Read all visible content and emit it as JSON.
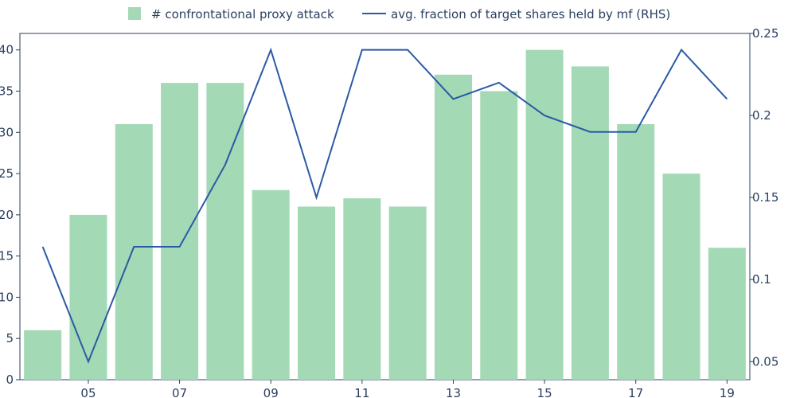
{
  "chart_data": {
    "type": "bar",
    "x": [
      "04",
      "05",
      "06",
      "07",
      "08",
      "09",
      "10",
      "11",
      "12",
      "13",
      "14",
      "15",
      "16",
      "17",
      "18",
      "19"
    ],
    "x_tick_labels": [
      "05",
      "07",
      "09",
      "11",
      "13",
      "15",
      "17",
      "19"
    ],
    "series": [
      {
        "name": "# confrontational proxy attack",
        "type": "bar",
        "axis": "left",
        "color": "#a3d9b5",
        "values": [
          6,
          20,
          31,
          36,
          36,
          23,
          21,
          22,
          21,
          37,
          35,
          40,
          38,
          31,
          25,
          16
        ]
      },
      {
        "name": "avg. fraction of target shares held by mf (RHS)",
        "type": "line",
        "axis": "right",
        "color": "#2a5aa6",
        "values": [
          0.12,
          0.05,
          0.12,
          0.12,
          0.17,
          0.24,
          0.15,
          0.24,
          0.24,
          0.21,
          0.22,
          0.2,
          0.19,
          0.19,
          0.24,
          0.21
        ]
      }
    ],
    "y_left": {
      "ylim": [
        0,
        42
      ],
      "ticks": [
        0,
        5,
        10,
        15,
        20,
        25,
        30,
        35,
        40
      ],
      "tick_labels": [
        "0",
        "5",
        "10",
        "15",
        "20",
        "25",
        "30",
        "35",
        "40"
      ]
    },
    "y_right": {
      "ylim": [
        0.039,
        0.25
      ],
      "ticks": [
        0.05,
        0.1,
        0.15,
        0.2,
        0.25
      ],
      "tick_labels": [
        "0.05",
        "0.1",
        "0.15",
        "0.2",
        "0.25"
      ]
    },
    "legend_position": "top-center",
    "grid": false
  }
}
